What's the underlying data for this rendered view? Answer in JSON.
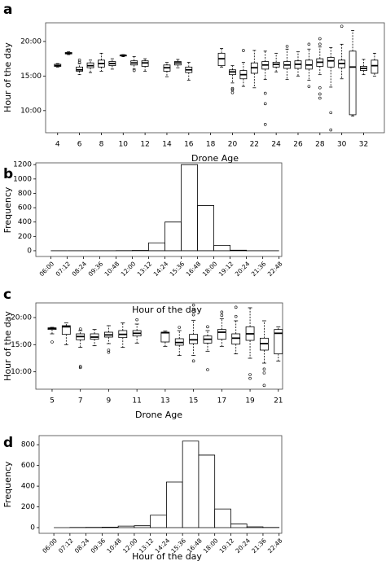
{
  "chart_data": [
    {
      "type": "box",
      "panel_label": "a",
      "x_label": "Drone Age",
      "y_label": "Hour of the day",
      "color": "#000000",
      "x": [
        4,
        5,
        6,
        7,
        8,
        9,
        10,
        11,
        12,
        14,
        15,
        16,
        19,
        20,
        21,
        22,
        23,
        24,
        25,
        26,
        27,
        28,
        29,
        30,
        31,
        32,
        33
      ],
      "min": [
        16.3,
        18.1,
        15.2,
        15.5,
        15.7,
        16.0,
        17.8,
        16.0,
        15.7,
        14.9,
        16.2,
        14.4,
        16.3,
        14.0,
        13.5,
        13.3,
        14.5,
        15.6,
        14.5,
        15.0,
        14.4,
        15.2,
        13.4,
        14.6,
        9.2,
        15.2,
        15.0
      ],
      "q1": [
        16.4,
        18.2,
        15.7,
        16.2,
        16.3,
        16.5,
        17.9,
        16.6,
        16.4,
        15.7,
        16.6,
        15.5,
        16.5,
        15.2,
        14.6,
        15.4,
        16.0,
        16.3,
        16.1,
        16.1,
        16.0,
        16.4,
        16.3,
        16.2,
        9.4,
        15.8,
        15.4
      ],
      "median": [
        16.5,
        18.3,
        15.9,
        16.5,
        16.8,
        16.8,
        18.0,
        16.9,
        16.9,
        16.2,
        16.9,
        15.9,
        17.5,
        15.6,
        15.2,
        16.2,
        16.6,
        16.7,
        16.6,
        16.7,
        16.6,
        17.0,
        17.2,
        16.8,
        16.3,
        16.1,
        16.5
      ],
      "q3": [
        16.7,
        18.4,
        16.3,
        16.9,
        17.3,
        17.1,
        18.0,
        17.2,
        17.2,
        16.6,
        17.1,
        16.3,
        18.3,
        15.9,
        15.8,
        16.9,
        17.1,
        17.0,
        17.1,
        17.2,
        17.3,
        17.5,
        17.7,
        17.3,
        18.6,
        16.4,
        17.3
      ],
      "max": [
        16.8,
        18.5,
        16.8,
        17.3,
        18.3,
        17.5,
        18.1,
        17.8,
        17.5,
        17.0,
        17.4,
        17.0,
        19.0,
        16.5,
        17.0,
        18.7,
        18.6,
        18.3,
        18.9,
        18.5,
        18.9,
        19.2,
        19.1,
        19.6,
        21.6,
        17.4,
        18.3
      ],
      "outliers": [
        [],
        [],
        [
          17.3,
          17.0
        ],
        [],
        [],
        [],
        [],
        [
          15.8
        ],
        [],
        [],
        [],
        [],
        [],
        [
          13.2,
          13.0,
          12.6
        ],
        [
          18.7
        ],
        [],
        [
          12.5,
          11.0,
          8.0
        ],
        [],
        [
          19.3
        ],
        [],
        [
          19.6,
          13.5
        ],
        [
          20.4,
          19.6,
          13.3,
          12.4,
          11.8
        ],
        [
          9.7,
          7.2
        ],
        [
          22.2
        ],
        [],
        [],
        []
      ],
      "xlim": [
        2.9,
        33.9
      ],
      "xticks": [
        4,
        6,
        8,
        10,
        12,
        14,
        16,
        18,
        20,
        22,
        24,
        26,
        28,
        30,
        32
      ],
      "ylim": [
        6.8,
        22.7
      ],
      "yticks": [
        {
          "value": 10,
          "label": "10:00"
        },
        {
          "value": 15,
          "label": "15:00"
        },
        {
          "value": 20,
          "label": "20:00"
        }
      ]
    },
    {
      "type": "histogram",
      "panel_label": "b",
      "x_label": "Hour of the day",
      "y_label": "Frequency",
      "color": "#000000",
      "bins": [
        6.0,
        7.2,
        8.4,
        9.6,
        10.8,
        12.0,
        13.2,
        14.4,
        15.6,
        16.8,
        18.0,
        19.2,
        20.4,
        21.6,
        22.8
      ],
      "values": [
        0,
        0,
        0,
        0,
        2,
        5,
        110,
        400,
        1200,
        630,
        75,
        8,
        1,
        0
      ],
      "xlim": [
        4.9,
        23.0
      ],
      "xticks": [
        {
          "value": 6.0,
          "label": "06:00"
        },
        {
          "value": 7.2,
          "label": "07:12"
        },
        {
          "value": 8.4,
          "label": "08:24"
        },
        {
          "value": 9.6,
          "label": "09:36"
        },
        {
          "value": 10.8,
          "label": "10:48"
        },
        {
          "value": 12.0,
          "label": "12:00"
        },
        {
          "value": 13.2,
          "label": "13:12"
        },
        {
          "value": 14.4,
          "label": "14:24"
        },
        {
          "value": 15.6,
          "label": "15:36"
        },
        {
          "value": 16.8,
          "label": "16:48"
        },
        {
          "value": 18.0,
          "label": "18:00"
        },
        {
          "value": 19.2,
          "label": "19:12"
        },
        {
          "value": 20.4,
          "label": "20:24"
        },
        {
          "value": 21.6,
          "label": "21:36"
        },
        {
          "value": 22.8,
          "label": "22:48"
        }
      ],
      "ylim": [
        -80,
        1225
      ],
      "yticks": [
        0,
        200,
        400,
        600,
        800,
        1000,
        1200
      ]
    },
    {
      "type": "box",
      "panel_label": "c",
      "x_label": "Drone Age",
      "y_label": "Hour of the day",
      "color": "#000000",
      "x": [
        5,
        6,
        7,
        8,
        9,
        10,
        11,
        13,
        14,
        15,
        16,
        17,
        18,
        19,
        20,
        21
      ],
      "min": [
        17.0,
        15.0,
        14.5,
        14.8,
        15.2,
        14.5,
        15.3,
        14.7,
        13.0,
        13.0,
        13.8,
        14.7,
        13.3,
        12.5,
        11.6,
        12.0
      ],
      "q1": [
        17.8,
        16.9,
        15.9,
        16.0,
        16.4,
        16.3,
        16.6,
        15.5,
        14.9,
        15.2,
        15.3,
        16.0,
        15.1,
        15.8,
        14.0,
        13.3
      ],
      "median": [
        18.0,
        18.3,
        16.5,
        16.4,
        16.8,
        16.9,
        17.1,
        17.2,
        15.4,
        15.9,
        16.0,
        17.3,
        16.2,
        17.0,
        15.2,
        17.1
      ],
      "q3": [
        18.1,
        18.5,
        17.0,
        17.0,
        17.3,
        17.6,
        17.6,
        17.3,
        16.1,
        16.9,
        16.6,
        17.8,
        17.0,
        18.3,
        16.2,
        17.8
      ],
      "max": [
        18.2,
        19.0,
        17.6,
        17.8,
        18.5,
        19.0,
        18.8,
        17.5,
        17.6,
        19.5,
        17.6,
        19.8,
        19.4,
        21.8,
        19.4,
        18.3
      ],
      "outliers": [
        [
          15.5
        ],
        [],
        [
          17.9,
          11.0,
          10.8
        ],
        [],
        [
          14.0,
          13.6
        ],
        [],
        [
          19.6
        ],
        [],
        [
          18.2
        ],
        [
          22.3,
          21.5,
          20.5,
          12.0
        ],
        [
          18.3,
          10.4
        ],
        [
          21.0,
          20.4
        ],
        [
          21.9,
          20.2
        ],
        [
          8.8,
          9.5
        ],
        [
          10.5,
          9.8,
          7.5
        ],
        []
      ],
      "xlim": [
        3.85,
        21.3
      ],
      "xticks": [
        5,
        7,
        9,
        11,
        13,
        15,
        17,
        19,
        21
      ],
      "ylim": [
        6.8,
        22.7
      ],
      "yticks": [
        {
          "value": 10,
          "label": "10:00"
        },
        {
          "value": 15,
          "label": "15:00"
        },
        {
          "value": 20,
          "label": "20:00"
        }
      ]
    },
    {
      "type": "histogram",
      "panel_label": "d",
      "x_label": "Hour of the day",
      "y_label": "Frequency",
      "color": "#000000",
      "bins": [
        6.0,
        7.2,
        8.4,
        9.6,
        10.8,
        12.0,
        13.2,
        14.4,
        15.6,
        16.8,
        18.0,
        19.2,
        20.4,
        21.6,
        22.8
      ],
      "values": [
        0,
        2,
        3,
        5,
        15,
        18,
        120,
        440,
        835,
        700,
        180,
        35,
        8,
        2
      ],
      "xlim": [
        4.9,
        23.0
      ],
      "xticks": [
        {
          "value": 6.0,
          "label": "06:00"
        },
        {
          "value": 7.2,
          "label": "07:12"
        },
        {
          "value": 8.4,
          "label": "08:24"
        },
        {
          "value": 9.6,
          "label": "09:36"
        },
        {
          "value": 10.8,
          "label": "10:48"
        },
        {
          "value": 12.0,
          "label": "12:00"
        },
        {
          "value": 13.2,
          "label": "13:12"
        },
        {
          "value": 14.4,
          "label": "14:24"
        },
        {
          "value": 15.6,
          "label": "15:36"
        },
        {
          "value": 16.8,
          "label": "16:48"
        },
        {
          "value": 18.0,
          "label": "18:00"
        },
        {
          "value": 19.2,
          "label": "19:12"
        },
        {
          "value": 20.4,
          "label": "20:24"
        },
        {
          "value": 21.6,
          "label": "21:36"
        },
        {
          "value": 22.8,
          "label": "22:48"
        }
      ],
      "ylim": [
        -55,
        888
      ],
      "yticks": [
        0,
        200,
        400,
        600,
        800
      ]
    }
  ]
}
